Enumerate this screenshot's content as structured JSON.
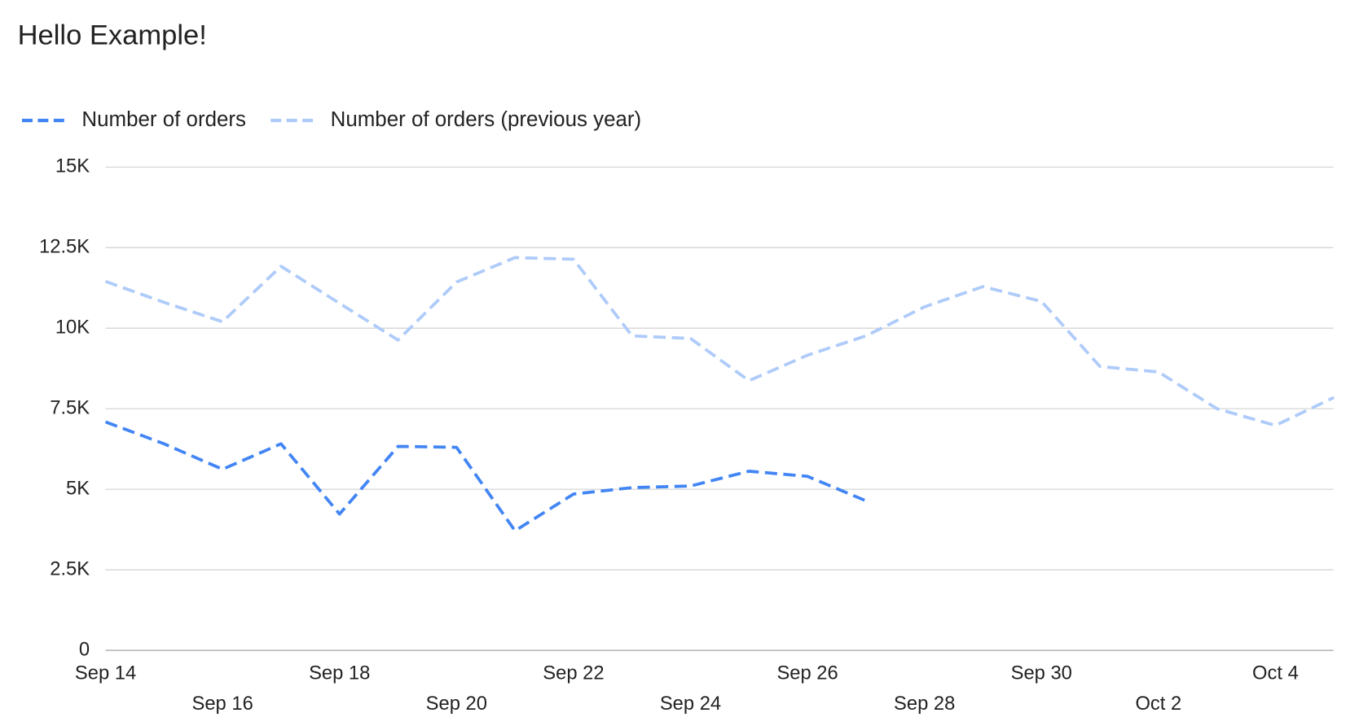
{
  "chart_data": {
    "type": "line",
    "title": "Hello Example!",
    "categories": [
      "Sep 14",
      null,
      "Sep 16",
      null,
      "Sep 18",
      null,
      "Sep 20",
      null,
      "Sep 22",
      null,
      "Sep 24",
      null,
      "Sep 26",
      null,
      "Sep 28",
      null,
      "Sep 30",
      null,
      "Oct 2",
      null,
      "Oct 4",
      null
    ],
    "series": [
      {
        "name": "Number of orders",
        "color": "#4285f4",
        "values": [
          7090,
          6410,
          5620,
          6410,
          4230,
          6330,
          6300,
          3710,
          4850,
          5050,
          5100,
          5560,
          5400,
          4640,
          null,
          null,
          null,
          null,
          null,
          null,
          null,
          null
        ]
      },
      {
        "name": "Number of orders (previous year)",
        "color": "#aecbfa",
        "values": [
          11450,
          10800,
          10200,
          11920,
          10770,
          9630,
          11430,
          12190,
          12140,
          9760,
          9680,
          8370,
          9160,
          9760,
          10660,
          11290,
          10830,
          8810,
          8640,
          7500,
          6980,
          7850
        ]
      }
    ],
    "ylim": [
      0,
      15000
    ],
    "yticks": [
      0,
      {
        "value": 2500,
        "label": "2.5K"
      },
      {
        "value": 5000,
        "label": "5K"
      },
      {
        "value": 7500,
        "label": "7.5K"
      },
      {
        "value": 10000,
        "label": "10K"
      },
      {
        "value": 12500,
        "label": "12.5K"
      },
      {
        "value": 15000,
        "label": "15K"
      }
    ],
    "grid": true,
    "legend": "top"
  }
}
